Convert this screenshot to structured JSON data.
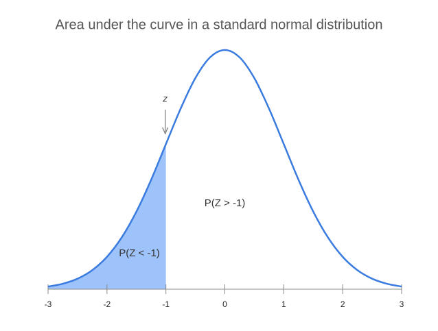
{
  "chart_data": {
    "type": "area",
    "title": "Area under the curve in a standard normal distribution",
    "x": [
      -3,
      -2.75,
      -2.5,
      -2.25,
      -2,
      -1.75,
      -1.5,
      -1.25,
      -1,
      -0.75,
      -0.5,
      -0.25,
      0,
      0.25,
      0.5,
      0.75,
      1,
      1.25,
      1.5,
      1.75,
      2,
      2.25,
      2.5,
      2.75,
      3
    ],
    "y": [
      0.0044,
      0.0091,
      0.0175,
      0.0317,
      0.054,
      0.0863,
      0.1295,
      0.1826,
      0.242,
      0.3011,
      0.3521,
      0.3867,
      0.3989,
      0.3867,
      0.3521,
      0.3011,
      0.242,
      0.1826,
      0.1295,
      0.0863,
      0.054,
      0.0317,
      0.0175,
      0.0091,
      0.0044
    ],
    "xlim": [
      -3,
      3
    ],
    "xticks": [
      -3,
      -2,
      -1,
      0,
      1,
      2,
      3
    ],
    "ylim": [
      0,
      0.4
    ],
    "shade_to": -1,
    "line_color": "#3a7be0",
    "shade_color": "#9ec3fb",
    "annotations": {
      "marker": "z",
      "right_area": "P(Z > -1)",
      "left_area": "P(Z < -1)"
    }
  }
}
